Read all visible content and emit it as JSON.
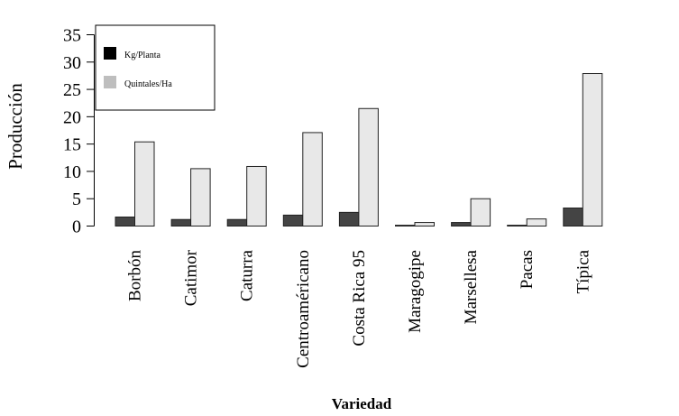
{
  "chart_data": {
    "type": "bar",
    "title": "",
    "xlabel": "Variedad",
    "ylabel": "Producción",
    "ylim": [
      0,
      35
    ],
    "yticks": [
      0,
      5,
      10,
      15,
      20,
      25,
      30,
      35
    ],
    "grid": false,
    "legend_position": "top-left",
    "categories": [
      "Borbón",
      "Catimor",
      "Caturra",
      "Centroaméricano",
      "Costa Rica 95",
      "Maragogipe",
      "Marsellesa",
      "Pacas",
      "Típica"
    ],
    "series": [
      {
        "name": "Kg/Planta",
        "color": "#444444",
        "legend_color": "#000000",
        "values": [
          1.65,
          1.2,
          1.2,
          2.0,
          2.5,
          0.15,
          0.65,
          0.15,
          3.3
        ]
      },
      {
        "name": "Quintales/Ha",
        "color": "#e8e8e8",
        "legend_color": "#bebebe",
        "values": [
          15.4,
          10.5,
          10.9,
          17.1,
          21.5,
          0.65,
          5.0,
          1.3,
          27.9
        ]
      }
    ]
  }
}
